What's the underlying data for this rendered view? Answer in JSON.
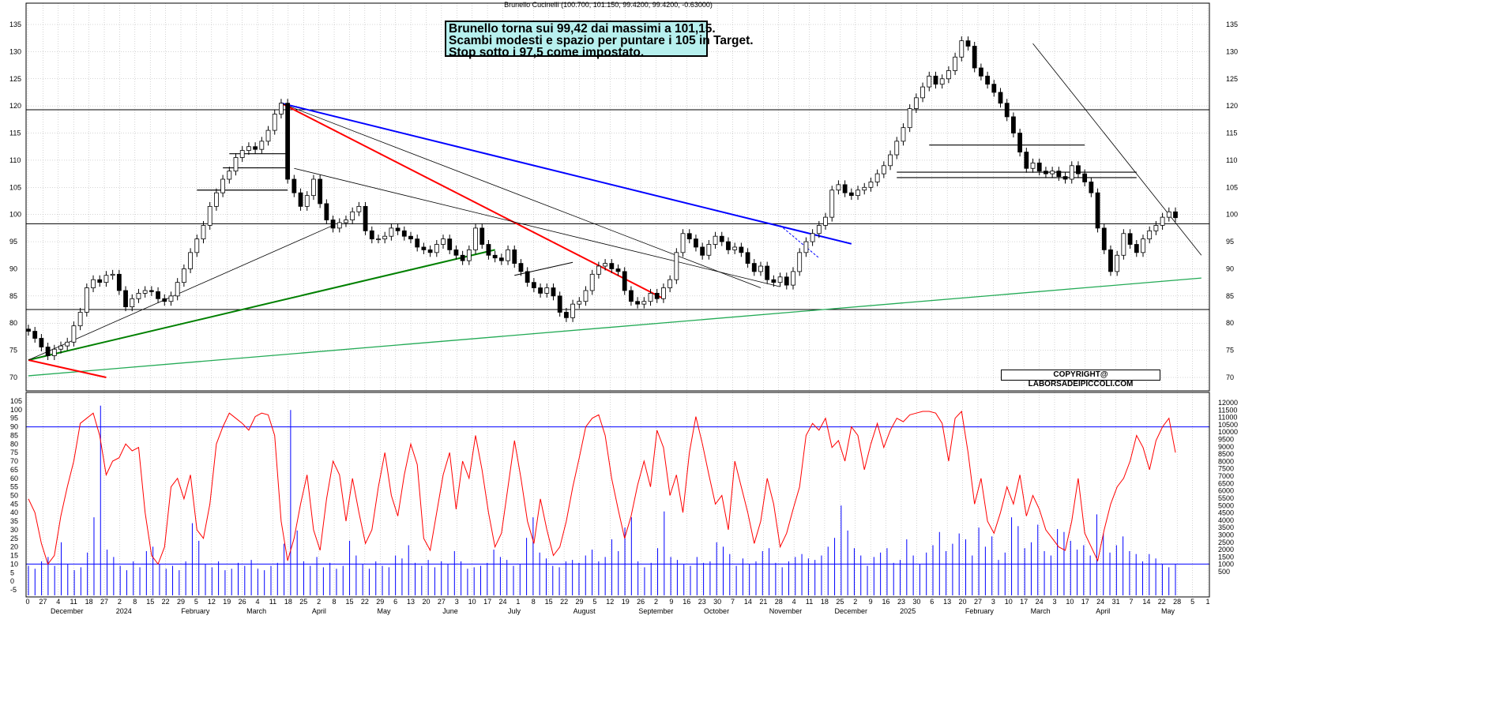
{
  "title": "Brunello Cucinelli (100.700, 101.150, 99.4200, 99.4200, -0.63000)",
  "annotation": {
    "lines": [
      "Brunello torna sui 99,42 dai massimi a 101,15.",
      "Scambi modesti e spazio per puntare i 105 in Target.",
      "Stop sotto i 97,5 come impostato."
    ]
  },
  "copyright": "COPYRIGHT@ LABORSADEIPICCOLI.COM",
  "colors": {
    "candles": "#000000",
    "rsi": "#ff0000",
    "volume": "#0000ff",
    "trend_red": "#ff0000",
    "trend_blue": "#0000ff",
    "trend_green_dark": "#008000",
    "trend_green_light": "#22aa55",
    "grid": "#aaaaaa"
  },
  "chart_data": [
    {
      "type": "candlestick",
      "name": "Brunello Cucinelli",
      "ylim": [
        67,
        137
      ],
      "yticks": [
        70,
        75,
        80,
        85,
        90,
        95,
        100,
        105,
        110,
        115,
        120,
        125,
        130,
        135
      ],
      "x_day_ticks": [
        "0",
        "27",
        "4",
        "11",
        "18",
        "27",
        "2",
        "8",
        "15",
        "22",
        "29",
        "5",
        "12",
        "19",
        "26",
        "4",
        "11",
        "18",
        "25",
        "2",
        "8",
        "15",
        "22",
        "29",
        "6",
        "13",
        "20",
        "27",
        "3",
        "10",
        "17",
        "24",
        "1",
        "8",
        "15",
        "22",
        "29",
        "5",
        "12",
        "19",
        "26",
        "2",
        "9",
        "16",
        "23",
        "30",
        "7",
        "14",
        "21",
        "28",
        "4",
        "11",
        "18",
        "25",
        "2",
        "9",
        "16",
        "23",
        "30",
        "6",
        "13",
        "20",
        "27",
        "3",
        "10",
        "17",
        "24",
        "3",
        "10",
        "17",
        "24",
        "31",
        "7",
        "14",
        "22",
        "28",
        "5",
        "1"
      ],
      "x_month_labels": [
        "December",
        "2024",
        "February",
        "March",
        "April",
        "May",
        "June",
        "July",
        "August",
        "September",
        "October",
        "November",
        "December",
        "2025",
        "February",
        "March",
        "April",
        "May"
      ],
      "closes": [
        78.5,
        77.2,
        75.6,
        74.0,
        75.2,
        75.8,
        76.5,
        79.5,
        82.0,
        86.5,
        88.0,
        87.5,
        88.8,
        89.0,
        86.0,
        83.0,
        84.5,
        85.5,
        86.0,
        85.8,
        84.5,
        84.0,
        85.0,
        87.5,
        90.0,
        93.0,
        95.5,
        98.0,
        101.5,
        104.0,
        106.5,
        108.0,
        110.5,
        111.8,
        112.5,
        112.0,
        113.5,
        115.5,
        118.5,
        120.5,
        106.5,
        104.0,
        101.5,
        103.5,
        106.5,
        102.0,
        99.0,
        97.5,
        98.5,
        99.0,
        100.5,
        101.5,
        97.0,
        95.5,
        95.5,
        96.0,
        97.5,
        97.0,
        96.0,
        95.5,
        94.0,
        93.5,
        93.0,
        94.5,
        95.5,
        93.5,
        92.5,
        91.5,
        93.5,
        97.5,
        94.5,
        92.5,
        92.0,
        91.5,
        93.5,
        91.0,
        89.5,
        87.5,
        86.5,
        85.5,
        86.5,
        85.0,
        82.0,
        81.0,
        83.5,
        84.0,
        86.0,
        89.0,
        90.5,
        91.0,
        90.0,
        89.5,
        86.0,
        84.0,
        83.5,
        84.0,
        85.5,
        84.5,
        86.5,
        88.0,
        93.0,
        96.5,
        95.5,
        94.0,
        92.5,
        94.5,
        96.0,
        95.0,
        93.5,
        94.0,
        93.0,
        91.0,
        89.5,
        90.5,
        88.0,
        87.5,
        88.5,
        87.0,
        89.5,
        93.0,
        95.0,
        96.5,
        98.0,
        99.5,
        104.5,
        105.5,
        104.0,
        103.5,
        104.5,
        105.0,
        106.0,
        107.5,
        109.0,
        111.0,
        113.5,
        116.0,
        119.5,
        121.5,
        123.5,
        125.5,
        124.0,
        125.0,
        126.5,
        129.0,
        132.0,
        131.0,
        127.0,
        125.5,
        124.0,
        122.5,
        120.5,
        118.0,
        115.0,
        111.5,
        108.5,
        109.5,
        108.0,
        107.5,
        108.0,
        107.0,
        106.5,
        109.0,
        107.5,
        106.0,
        104.0,
        97.5,
        93.5,
        89.5,
        92.5,
        96.5,
        94.5,
        93.0,
        95.5,
        97.0,
        98.0,
        99.5,
        100.5,
        99.42
      ],
      "horizontal_levels": [
        119.3,
        98.3,
        82.5
      ]
    },
    {
      "type": "line",
      "name": "RSI oscillator",
      "ylim": [
        -5,
        105
      ],
      "yticks": [
        -5,
        0,
        5,
        10,
        15,
        20,
        25,
        30,
        35,
        40,
        45,
        50,
        55,
        60,
        65,
        70,
        75,
        80,
        85,
        90,
        95,
        100,
        105
      ],
      "reference_levels": [
        90,
        10
      ],
      "values": [
        48,
        40,
        22,
        10,
        15,
        38,
        55,
        70,
        92,
        95,
        98,
        85,
        62,
        70,
        72,
        80,
        76,
        78,
        40,
        15,
        10,
        20,
        55,
        60,
        48,
        62,
        30,
        25,
        45,
        80,
        90,
        98,
        95,
        92,
        88,
        96,
        98,
        97,
        85,
        35,
        12,
        25,
        45,
        62,
        30,
        18,
        48,
        70,
        62,
        35,
        60,
        40,
        22,
        30,
        55,
        75,
        50,
        38,
        62,
        80,
        68,
        25,
        18,
        40,
        62,
        75,
        42,
        70,
        60,
        85,
        65,
        40,
        20,
        28,
        55,
        82,
        60,
        35,
        22,
        48,
        30,
        15,
        20,
        35,
        55,
        72,
        90,
        95,
        97,
        85,
        60,
        42,
        25,
        38,
        56,
        70,
        55,
        88,
        78,
        50,
        62,
        40,
        75,
        96,
        80,
        62,
        45,
        50,
        30,
        70,
        55,
        40,
        22,
        35,
        60,
        45,
        20,
        28,
        42,
        55,
        85,
        92,
        88,
        95,
        78,
        82,
        70,
        90,
        85,
        65,
        80,
        92,
        78,
        88,
        95,
        93,
        97,
        98,
        99,
        99,
        98,
        92,
        70,
        95,
        99,
        75,
        45,
        60,
        35,
        28,
        40,
        55,
        45,
        62,
        38,
        50,
        42,
        30,
        25,
        20,
        18,
        35,
        60,
        28,
        20,
        12,
        30,
        45,
        55,
        60,
        70,
        85,
        78,
        65,
        82,
        90,
        95,
        75
      ]
    },
    {
      "type": "bar",
      "name": "Volume",
      "ylim": [
        0,
        12000
      ],
      "yticks": [
        500,
        1000,
        1500,
        2000,
        2500,
        3000,
        3500,
        4000,
        4500,
        5000,
        5500,
        6000,
        6500,
        7000,
        7500,
        8000,
        8500,
        9000,
        9500,
        10000,
        10500,
        11000,
        11500,
        12000
      ],
      "values": [
        900,
        700,
        1200,
        1500,
        900,
        2500,
        1000,
        600,
        800,
        1800,
        4200,
        11800,
        2000,
        1500,
        900,
        600,
        1200,
        800,
        1900,
        2200,
        1000,
        700,
        900,
        600,
        1200,
        3800,
        2600,
        1000,
        800,
        1200,
        600,
        700,
        1100,
        900,
        1300,
        700,
        600,
        900,
        1100,
        2400,
        11500,
        3300,
        1200,
        900,
        1500,
        800,
        1100,
        700,
        900,
        2600,
        1600,
        1000,
        700,
        1200,
        900,
        800,
        1600,
        1400,
        2300,
        1100,
        900,
        1300,
        800,
        1200,
        1000,
        1900,
        1200,
        700,
        800,
        900,
        1100,
        2000,
        1500,
        1300,
        900,
        1000,
        2800,
        4200,
        1800,
        1400,
        900,
        800,
        1200,
        1300,
        1100,
        1600,
        2000,
        1200,
        1500,
        2700,
        1900,
        3500,
        4200,
        1200,
        800,
        1100,
        2100,
        4600,
        1500,
        1300,
        1000,
        900,
        1500,
        1100,
        1200,
        2500,
        2200,
        1700,
        900,
        1400,
        1000,
        1200,
        1900,
        2100,
        1100,
        800,
        1200,
        1500,
        1700,
        1400,
        1300,
        1600,
        2200,
        2800,
        5000,
        3300,
        2100,
        1600,
        900,
        1500,
        1800,
        2100,
        1100,
        1300,
        2700,
        1600,
        1000,
        1800,
        2300,
        3200,
        1900,
        2400,
        3100,
        2700,
        1600,
        3500,
        2200,
        2900,
        1300,
        1800,
        4200,
        3600,
        2100,
        2500,
        3700,
        1900,
        1600,
        3400,
        3200,
        2600,
        2000,
        2300,
        1600,
        4400,
        3100,
        1800,
        2300,
        2900,
        1900,
        1700,
        1200,
        1700,
        1400,
        1000,
        800,
        1000
      ]
    }
  ]
}
